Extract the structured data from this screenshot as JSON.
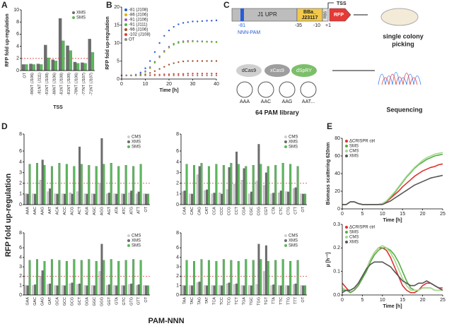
{
  "panel_labels": [
    "A",
    "B",
    "C",
    "D",
    "E"
  ],
  "chart_data": [
    {
      "type": "bar",
      "ylabel": "RFP fold up-regulation",
      "xlabel": "TSS",
      "categories": [
        "OT",
        "-96NT (J106)",
        "-91NT (J111)",
        "-91NT (J108)",
        "-86NT (J106)",
        "-81NT (J108)",
        "-81NT (J109)",
        "-78NT (J106)",
        "-77NT (J107)",
        "-71NT (J107)"
      ],
      "series": [
        {
          "name": "XMS",
          "color": "#6d6d6d",
          "values": [
            1,
            1.1,
            1.1,
            4.2,
            1.8,
            8.6,
            4.1,
            1.4,
            1.3,
            5.2
          ]
        },
        {
          "name": "SMS",
          "color": "#5cb85c",
          "values": [
            1,
            1,
            1,
            2.1,
            1.6,
            4.9,
            3.3,
            1.2,
            1.2,
            3.0
          ]
        }
      ],
      "ylim": [
        0,
        10
      ],
      "yticks": [
        0,
        2,
        4,
        6,
        8,
        10
      ],
      "threshold": 2,
      "legend": "top-right"
    },
    {
      "type": "line",
      "markers": true,
      "ylabel": "RFP fold up-regulation",
      "xlabel": "Time [h]",
      "x": [
        0,
        2,
        4,
        6,
        8,
        10,
        12,
        14,
        16,
        18,
        20,
        22,
        24,
        26,
        28,
        30,
        32,
        34,
        36,
        38,
        40
      ],
      "series": [
        {
          "name": "-81 (J108)",
          "color": "#2a5bd7",
          "values": [
            1,
            1,
            1,
            1.2,
            1.8,
            3,
            5,
            7.5,
            10,
            12,
            13.5,
            14.5,
            15.2,
            15.6,
            15.8,
            16,
            16,
            16.1,
            16.2,
            16.2,
            16.3
          ]
        },
        {
          "name": "-86 (J106)",
          "color": "#d9b400",
          "values": [
            1,
            1,
            1,
            1.1,
            1.4,
            2,
            3,
            4.5,
            6,
            7.5,
            8.7,
            9.5,
            10,
            10.2,
            10.3,
            10.4,
            10.4,
            10.4,
            10.3,
            10.3,
            10.2
          ]
        },
        {
          "name": "-91 (J106)",
          "color": "#9b59d0",
          "values": [
            1,
            1,
            1,
            1.1,
            1.5,
            2.2,
            3.3,
            4.8,
            6.3,
            7.8,
            9,
            9.8,
            10.3,
            10.5,
            10.6,
            10.6,
            10.5,
            10.5,
            10.4,
            10.4,
            10.3
          ]
        },
        {
          "name": "-91 (J111)",
          "color": "#4db848",
          "values": [
            1,
            1,
            1,
            1.1,
            1.4,
            2,
            3.1,
            4.6,
            6.1,
            7.6,
            8.8,
            9.6,
            10.1,
            10.3,
            10.4,
            10.5,
            10.5,
            10.4,
            10.4,
            10.3,
            10.3
          ]
        },
        {
          "name": "-96 (J106)",
          "color": "#a0522d",
          "values": [
            1,
            1,
            1,
            1,
            1.1,
            1.3,
            1.7,
            2.2,
            2.8,
            3.4,
            4,
            4.4,
            4.7,
            4.9,
            5,
            5,
            5,
            5,
            5,
            5,
            5
          ]
        },
        {
          "name": "-102 (J108)",
          "color": "#e03c31",
          "values": [
            1,
            1,
            1,
            1,
            1,
            1.1,
            1.1,
            1.2,
            1.2,
            1.3,
            1.3,
            1.4,
            1.4,
            1.4,
            1.5,
            1.5,
            1.5,
            1.5,
            1.5,
            1.5,
            1.5
          ]
        },
        {
          "name": "OT",
          "color": "#888888",
          "values": [
            1,
            1,
            1,
            1,
            1,
            1,
            1,
            1,
            1,
            1,
            1,
            1,
            1,
            1,
            1,
            1,
            1,
            1,
            1,
            1,
            1
          ]
        }
      ],
      "xlim": [
        0,
        40
      ],
      "xticks": [
        0,
        10,
        20,
        30,
        40
      ],
      "ylim": [
        0,
        20
      ],
      "yticks": [
        0,
        5,
        10,
        15,
        20
      ],
      "legend": "top-left"
    },
    {
      "type": "bar",
      "categories": [
        "AAA",
        "AAC",
        "AAG",
        "AAT",
        "ACA",
        "ACC",
        "ACG",
        "ACT",
        "AGA",
        "AGC",
        "AGG",
        "AGT",
        "ATA",
        "ATC",
        "ATG",
        "ATT",
        "OT"
      ],
      "series": [
        {
          "name": "CMS",
          "color": "#cfcfcf",
          "values": [
            1,
            1,
            2.3,
            1.2,
            1,
            1,
            1.1,
            1.2,
            1,
            1,
            2.0,
            1,
            1,
            1,
            1.1,
            1,
            1
          ]
        },
        {
          "name": "XMS",
          "color": "#6d6d6d",
          "values": [
            1,
            1,
            4.2,
            1.5,
            1,
            1,
            1,
            6.5,
            1,
            1,
            7.5,
            1.1,
            1,
            1,
            1.3,
            1.2,
            1
          ]
        },
        {
          "name": "SMS",
          "color": "#5cb85c",
          "values": [
            3.8,
            3.9,
            3.7,
            3.6,
            3.9,
            3.8,
            3.6,
            3.8,
            3.7,
            3.6,
            3.8,
            3.9,
            3.6,
            3.7,
            3.6,
            3.8,
            1
          ]
        }
      ],
      "ylim": [
        0,
        8
      ],
      "yticks": [
        0,
        1,
        2,
        3,
        4,
        6,
        8
      ],
      "axis_break": [
        4.5,
        6
      ],
      "threshold": 2,
      "legend": "top-right"
    },
    {
      "type": "bar",
      "categories": [
        "CAA",
        "CAC",
        "CAG",
        "CAT",
        "CCA",
        "CCC",
        "CCG",
        "CCT",
        "CGA",
        "CGC",
        "CGG",
        "CGT",
        "CTA",
        "CTC",
        "CTG",
        "CTT",
        "OT"
      ],
      "series": [
        {
          "name": "CMS",
          "color": "#cfcfcf",
          "values": [
            1.2,
            1,
            2.8,
            1.3,
            1,
            1.1,
            1.4,
            1.9,
            2.3,
            1,
            2.2,
            1.8,
            1,
            1.1,
            1.2,
            1.5,
            1
          ]
        },
        {
          "name": "XMS",
          "color": "#6d6d6d",
          "values": [
            1.3,
            1,
            3.6,
            1.4,
            1.1,
            1,
            3.5,
            5.8,
            3.4,
            1.2,
            6.8,
            3.0,
            1.1,
            1.3,
            1.2,
            1.6,
            1
          ]
        },
        {
          "name": "SMS",
          "color": "#5cb85c",
          "values": [
            3.8,
            3.7,
            3.9,
            3.6,
            3.8,
            3.7,
            3.9,
            3.8,
            3.6,
            3.7,
            3.8,
            3.6,
            3.7,
            3.9,
            3.8,
            3.6,
            1
          ]
        }
      ],
      "ylim": [
        0,
        8
      ],
      "yticks": [
        0,
        1,
        2,
        3,
        4,
        6,
        8
      ],
      "axis_break": [
        4.5,
        6
      ],
      "threshold": 2,
      "legend": "top-right"
    },
    {
      "type": "bar",
      "categories": [
        "GAA",
        "GAC",
        "GAG",
        "GAT",
        "GCA",
        "GCC",
        "GCG",
        "GCT",
        "GGA",
        "GGC",
        "GGG",
        "GGT",
        "GTA",
        "GTC",
        "GTG",
        "GTT",
        "OT"
      ],
      "series": [
        {
          "name": "CMS",
          "color": "#cfcfcf",
          "values": [
            1,
            1,
            2.0,
            1.1,
            1,
            1,
            1.2,
            1.1,
            1,
            1,
            2.5,
            1,
            1,
            1,
            1.1,
            1,
            1
          ]
        },
        {
          "name": "XMS",
          "color": "#6d6d6d",
          "values": [
            1,
            1.1,
            2.6,
            1.2,
            1,
            1,
            1.3,
            1.2,
            1,
            1,
            6.5,
            1.1,
            1,
            1,
            1.2,
            1.1,
            1
          ]
        },
        {
          "name": "SMS",
          "color": "#5cb85c",
          "values": [
            3.7,
            3.8,
            3.6,
            3.8,
            3.7,
            3.6,
            3.8,
            3.7,
            3.8,
            3.6,
            3.7,
            3.8,
            3.6,
            3.7,
            3.8,
            3.7,
            1
          ]
        }
      ],
      "ylim": [
        0,
        8
      ],
      "yticks": [
        0,
        1,
        2,
        3,
        4,
        6,
        8
      ],
      "axis_break": [
        4.5,
        6
      ],
      "threshold": 2,
      "legend": "top-right"
    },
    {
      "type": "bar",
      "categories": [
        "TAA",
        "TAC",
        "TAG",
        "TAT",
        "TCA",
        "TCC",
        "TCG",
        "TCT",
        "TGA",
        "TGC",
        "TGG",
        "TGT",
        "TTA",
        "TTC",
        "TTG",
        "TTT",
        "OT"
      ],
      "series": [
        {
          "name": "CMS",
          "color": "#cfcfcf",
          "values": [
            1,
            1,
            1.3,
            1,
            1,
            1,
            1.2,
            1.1,
            1,
            1,
            1.1,
            2.5,
            1,
            1,
            1,
            1.1,
            1
          ]
        },
        {
          "name": "XMS",
          "color": "#6d6d6d",
          "values": [
            1,
            1,
            1.4,
            1,
            1,
            1,
            1.3,
            1.2,
            1,
            1,
            6.5,
            6.3,
            1.1,
            1,
            1,
            1.2,
            1
          ]
        },
        {
          "name": "SMS",
          "color": "#5cb85c",
          "values": [
            3.7,
            3.6,
            3.8,
            3.7,
            3.6,
            3.8,
            3.7,
            3.6,
            3.8,
            3.7,
            3.8,
            3.6,
            3.7,
            3.8,
            3.6,
            3.7,
            1
          ]
        }
      ],
      "ylim": [
        0,
        8
      ],
      "yticks": [
        0,
        1,
        2,
        3,
        4,
        6,
        8
      ],
      "axis_break": [
        4.5,
        6
      ],
      "threshold": 2,
      "legend": "top-right"
    },
    {
      "type": "line",
      "ylabel": "Biomass scattering 620nm",
      "xlabel": "Time [h]",
      "x": [
        0,
        1,
        2,
        3,
        4,
        5,
        6,
        7,
        8,
        9,
        10,
        11,
        12,
        13,
        14,
        15,
        16,
        17,
        18,
        19,
        20,
        21,
        22,
        23,
        24,
        25
      ],
      "series": [
        {
          "name": "ΔCRISPR ctrl",
          "color": "#e0302e",
          "values": [
            5,
            5,
            8,
            8,
            6,
            5,
            5,
            5,
            5,
            5,
            6,
            8,
            12,
            16,
            20,
            25,
            29,
            33,
            37,
            40,
            43,
            45,
            47,
            48,
            50,
            51
          ]
        },
        {
          "name": "SMS",
          "color": "#52b043",
          "values": [
            5,
            5,
            8,
            8,
            6,
            5,
            5,
            5,
            5,
            5,
            6,
            9,
            13,
            18,
            24,
            30,
            36,
            41,
            46,
            50,
            53,
            56,
            58,
            60,
            61,
            62
          ]
        },
        {
          "name": "CMS",
          "color": "#a6d88f",
          "values": [
            5,
            5,
            8,
            8,
            6,
            5,
            5,
            5,
            5,
            5,
            6,
            9,
            14,
            19,
            25,
            31,
            37,
            42,
            47,
            51,
            55,
            58,
            60,
            62,
            63,
            64
          ]
        },
        {
          "name": "XMS",
          "color": "#555555",
          "values": [
            5,
            5,
            8,
            8,
            6,
            5,
            5,
            5,
            5,
            5,
            5,
            7,
            9,
            12,
            15,
            18,
            21,
            24,
            27,
            29,
            31,
            33,
            35,
            36,
            37,
            38
          ]
        }
      ],
      "xlim": [
        0,
        25
      ],
      "xticks": [
        0,
        5,
        10,
        15,
        20,
        25
      ],
      "ylim": [
        0,
        80
      ],
      "yticks": [
        0,
        20,
        40,
        60,
        80
      ],
      "legend": "top-left"
    },
    {
      "type": "line",
      "ylabel": "µ [h⁻¹]",
      "xlabel": "Time [h]",
      "x": [
        0,
        1,
        2,
        3,
        4,
        5,
        6,
        7,
        8,
        9,
        10,
        11,
        12,
        13,
        14,
        15,
        16,
        17,
        18,
        19,
        20,
        21,
        22,
        23,
        24,
        25
      ],
      "series": [
        {
          "name": "ΔCRISPR ctrl",
          "color": "#e0302e",
          "values": [
            0.05,
            0.03,
            0.01,
            0.02,
            0.04,
            0.07,
            0.11,
            0.15,
            0.18,
            0.2,
            0.2,
            0.19,
            0.16,
            0.12,
            0.08,
            0.04,
            0.02,
            0.01,
            0.01,
            0.02,
            0.04,
            0.05,
            0.05,
            0.04,
            0.03,
            0.03
          ]
        },
        {
          "name": "SMS",
          "color": "#52b043",
          "values": [
            0.02,
            0.02,
            0.01,
            0.02,
            0.04,
            0.07,
            0.1,
            0.14,
            0.17,
            0.19,
            0.2,
            0.2,
            0.19,
            0.17,
            0.14,
            0.1,
            0.06,
            0.03,
            0.02,
            0.02,
            0.03,
            0.03,
            0.03,
            0.02,
            0.02,
            0.02
          ]
        },
        {
          "name": "CMS",
          "color": "#a6d88f",
          "values": [
            0.03,
            0.02,
            0.02,
            0.03,
            0.05,
            0.08,
            0.11,
            0.15,
            0.18,
            0.2,
            0.21,
            0.2,
            0.18,
            0.15,
            0.11,
            0.07,
            0.04,
            0.02,
            0.02,
            0.02,
            0.03,
            0.03,
            0.03,
            0.02,
            0.02,
            0.02
          ]
        },
        {
          "name": "XMS",
          "color": "#555555",
          "values": [
            0.01,
            0.02,
            0.02,
            0.03,
            0.05,
            0.08,
            0.11,
            0.13,
            0.14,
            0.14,
            0.14,
            0.13,
            0.12,
            0.1,
            0.08,
            0.06,
            0.05,
            0.04,
            0.04,
            0.05,
            0.05,
            0.06,
            0.05,
            0.04,
            0.03,
            0.02
          ]
        }
      ],
      "xlim": [
        0,
        25
      ],
      "xticks": [
        0,
        5,
        10,
        15,
        20,
        25
      ],
      "ylim": [
        0,
        0.3
      ],
      "yticks": [
        {
          "value": 0,
          "label": "0.0"
        },
        0.1,
        0.2,
        0.3
      ],
      "legend": "top-left"
    }
  ],
  "figure_d": {
    "ylabel": "RFP fold up-regulation",
    "xlabel": "PAM-NNN"
  },
  "diagram_c": {
    "promoter": "J1 UPR",
    "part_name": [
      "BBa_",
      "J23117"
    ],
    "rbs": "RBS",
    "reporter": "RFP",
    "tss": "TSS",
    "pam": "NNN-PAM",
    "positions": [
      "-81",
      "-35",
      "-10",
      "+1"
    ],
    "picking": [
      "single colony",
      "picking"
    ],
    "proteins": [
      "dCas9",
      "xCas9",
      "dSpRY"
    ],
    "library": [
      "AAA",
      "AAC",
      "AAG",
      "AAT..."
    ],
    "library_label": "64 PAM library",
    "sequencing": "Sequencing"
  }
}
